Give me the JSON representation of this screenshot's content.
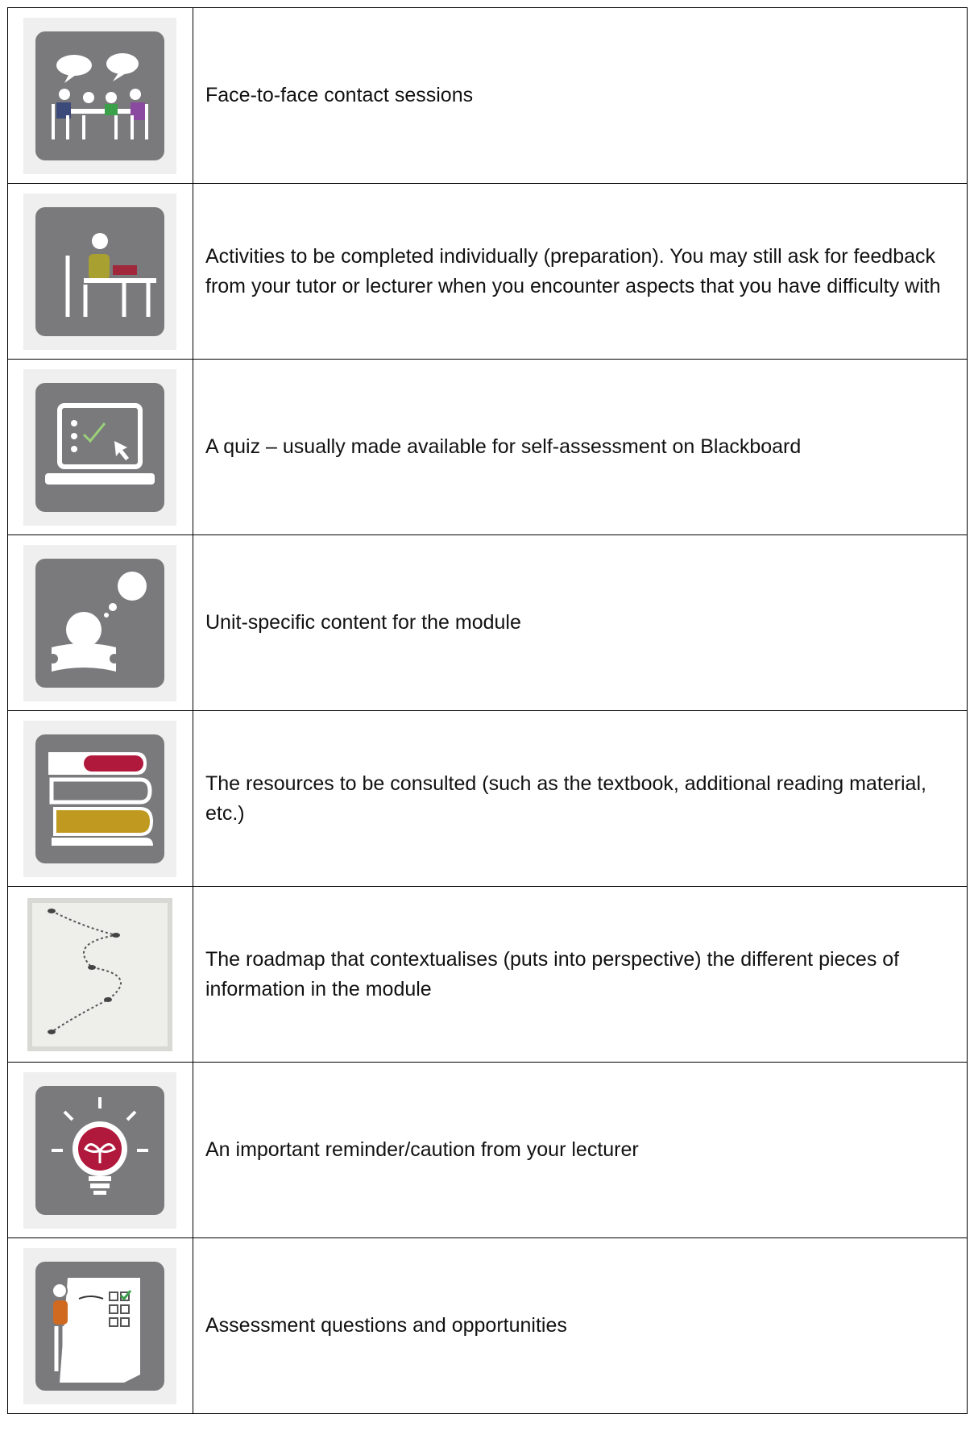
{
  "rows": [
    {
      "text": "Face-to-face contact sessions"
    },
    {
      "text": "Activities to be completed individually (preparation). You may still ask for feedback from your tutor or lecturer when you encounter aspects that you have difficulty with"
    },
    {
      "text": "A quiz – usually made available for self-assessment on Blackboard"
    },
    {
      "text": "Unit-specific content for the module"
    },
    {
      "text": "The resources to be consulted (such as the textbook, additional reading material, etc.)"
    },
    {
      "text": "The roadmap that contextualises (puts into perspective) the different pieces of information in the module"
    },
    {
      "text": "An important reminder/caution from your lecturer"
    },
    {
      "text": "Assessment questions and opportunities"
    }
  ]
}
